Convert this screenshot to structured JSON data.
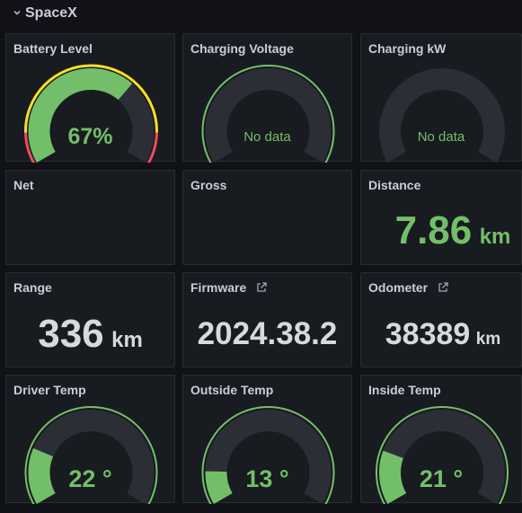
{
  "row": {
    "title": "SpaceX",
    "collapse_icon": "chevron-down-icon"
  },
  "colors": {
    "green": "#73bf69",
    "yellow": "#fade2a",
    "red": "#f2495c",
    "track": "#2b2e34",
    "gauge_text_green": "#73bf69",
    "stat_text": "#d8d9da"
  },
  "panels": {
    "battery": {
      "title": "Battery Level",
      "value_text": "67%",
      "value": 67,
      "min": 0,
      "max": 100,
      "thresholds": [
        {
          "from": 0,
          "to": 12,
          "color": "red"
        },
        {
          "from": 12,
          "to": 88,
          "color": "yellow"
        },
        {
          "from": 88,
          "to": 100,
          "color": "red"
        }
      ]
    },
    "charging_voltage": {
      "title": "Charging Voltage",
      "value_text": "No data"
    },
    "charging_kw": {
      "title": "Charging kW",
      "value_text": "No data"
    },
    "net": {
      "title": "Net"
    },
    "gross": {
      "title": "Gross"
    },
    "distance": {
      "title": "Distance",
      "value": "7.86",
      "unit": "km"
    },
    "range": {
      "title": "Range",
      "value": "336",
      "unit": "km"
    },
    "firmware": {
      "title": "Firmware",
      "value": "2024.38.2",
      "link_icon": "external-link-icon"
    },
    "odometer": {
      "title": "Odometer",
      "value": "38389",
      "unit": "km",
      "link_icon": "external-link-icon"
    },
    "driver_temp": {
      "title": "Driver Temp",
      "value_text": "22 °",
      "value": 22,
      "min": 0,
      "max": 100
    },
    "outside_temp": {
      "title": "Outside Temp",
      "value_text": "13 °",
      "value": 13,
      "min": 0,
      "max": 100
    },
    "inside_temp": {
      "title": "Inside Temp",
      "value_text": "21 °",
      "value": 21,
      "min": 0,
      "max": 100
    }
  }
}
